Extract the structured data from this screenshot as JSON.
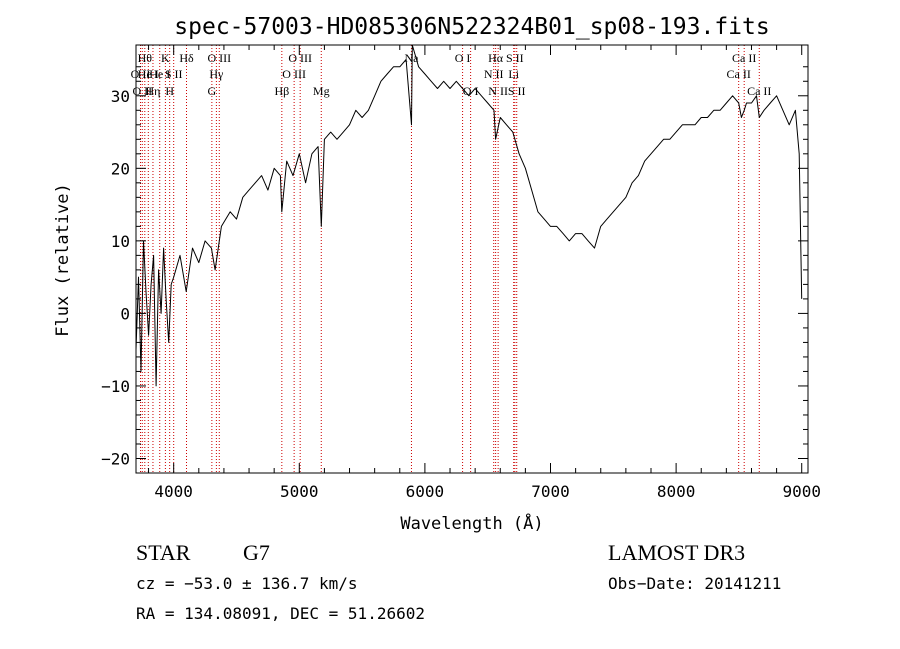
{
  "chart_data": {
    "type": "line",
    "title": "spec-57003-HD085306N522324B01_sp08-193.fits",
    "xlabel": "Wavelength (Å)",
    "ylabel": "Flux (relative)",
    "xlim": [
      3700,
      9050
    ],
    "ylim": [
      -22,
      37
    ],
    "xticks": [
      {
        "value": 4000,
        "label": "4000"
      },
      {
        "value": 5000,
        "label": "5000"
      },
      {
        "value": 6000,
        "label": "6000"
      },
      {
        "value": 7000,
        "label": "7000"
      },
      {
        "value": 8000,
        "label": "8000"
      },
      {
        "value": 9000,
        "label": "9000"
      }
    ],
    "yticks": [
      {
        "value": -20,
        "label": "−20"
      },
      {
        "value": -10,
        "label": "−10"
      },
      {
        "value": 0,
        "label": "0"
      },
      {
        "value": 10,
        "label": "10"
      },
      {
        "value": 20,
        "label": "20"
      },
      {
        "value": 30,
        "label": "30"
      }
    ],
    "series": [
      {
        "name": "flux",
        "x": [
          3700,
          3720,
          3740,
          3760,
          3780,
          3800,
          3820,
          3840,
          3860,
          3880,
          3900,
          3920,
          3940,
          3960,
          3980,
          4000,
          4050,
          4100,
          4150,
          4200,
          4250,
          4300,
          4330,
          4380,
          4450,
          4500,
          4550,
          4600,
          4650,
          4700,
          4750,
          4800,
          4850,
          4861,
          4900,
          4950,
          5000,
          5050,
          5100,
          5150,
          5175,
          5200,
          5250,
          5300,
          5350,
          5400,
          5450,
          5500,
          5550,
          5600,
          5650,
          5700,
          5750,
          5800,
          5850,
          5893,
          5900,
          5950,
          6000,
          6050,
          6100,
          6150,
          6200,
          6250,
          6300,
          6350,
          6400,
          6450,
          6500,
          6550,
          6563,
          6600,
          6650,
          6700,
          6750,
          6800,
          6850,
          6900,
          6950,
          7000,
          7050,
          7100,
          7150,
          7200,
          7250,
          7300,
          7350,
          7400,
          7450,
          7500,
          7550,
          7600,
          7650,
          7700,
          7750,
          7800,
          7850,
          7900,
          7950,
          8000,
          8050,
          8100,
          8150,
          8200,
          8250,
          8300,
          8350,
          8400,
          8450,
          8498,
          8520,
          8542,
          8560,
          8600,
          8640,
          8662,
          8700,
          8750,
          8800,
          8850,
          8900,
          8950,
          8980,
          9000
        ],
        "values": [
          -5,
          5,
          -8,
          10,
          3,
          -3,
          4,
          8,
          -10,
          6,
          0,
          9,
          2,
          -4,
          4,
          5,
          8,
          3,
          9,
          7,
          10,
          9,
          6,
          12,
          14,
          13,
          16,
          17,
          18,
          19,
          17,
          20,
          19,
          14,
          21,
          19,
          22,
          18,
          22,
          23,
          12,
          24,
          25,
          24,
          25,
          26,
          28,
          27,
          28,
          30,
          32,
          33,
          34,
          34,
          35,
          26,
          37,
          34,
          33,
          32,
          31,
          32,
          31,
          32,
          31,
          30,
          31,
          30,
          29,
          28,
          24,
          27,
          26,
          25,
          22,
          20,
          17,
          14,
          13,
          12,
          12,
          11,
          10,
          11,
          11,
          10,
          9,
          12,
          13,
          14,
          15,
          16,
          18,
          19,
          21,
          22,
          23,
          24,
          24,
          25,
          26,
          26,
          26,
          27,
          27,
          28,
          28,
          29,
          30,
          29,
          27,
          28,
          29,
          29,
          30,
          27,
          28,
          29,
          30,
          28,
          26,
          28,
          22,
          2
        ]
      }
    ],
    "lines": [
      {
        "x": 3736,
        "label": "O II",
        "row": 2
      },
      {
        "x": 3750,
        "label": "O II",
        "row": 3
      },
      {
        "x": 3770,
        "label": "Hθ",
        "row": 1
      },
      {
        "x": 3798,
        "label": "He I",
        "row": 2
      },
      {
        "x": 3835,
        "label": "Hη",
        "row": 3
      },
      {
        "x": 3889,
        "label": "He I",
        "row": 2
      },
      {
        "x": 3934,
        "label": "K",
        "row": 1
      },
      {
        "x": 3968,
        "label": "H",
        "row": 3
      },
      {
        "x": 4000,
        "label": "S II",
        "row": 2
      },
      {
        "x": 4102,
        "label": "Hδ",
        "row": 1
      },
      {
        "x": 4304,
        "label": "G",
        "row": 3
      },
      {
        "x": 4340,
        "label": "Hγ",
        "row": 2
      },
      {
        "x": 4363,
        "label": "O III",
        "row": 1
      },
      {
        "x": 4861,
        "label": "Hβ",
        "row": 3
      },
      {
        "x": 4959,
        "label": "O III",
        "row": 2
      },
      {
        "x": 5007,
        "label": "O III",
        "row": 1
      },
      {
        "x": 5175,
        "label": "Mg",
        "row": 3
      },
      {
        "x": 5893,
        "label": "Na",
        "row": 1
      },
      {
        "x": 6300,
        "label": "O I",
        "row": 1
      },
      {
        "x": 6364,
        "label": "O I",
        "row": 3
      },
      {
        "x": 6548,
        "label": "N II",
        "row": 2
      },
      {
        "x": 6563,
        "label": "Hα",
        "row": 1
      },
      {
        "x": 6583,
        "label": "N II",
        "row": 3
      },
      {
        "x": 6707,
        "label": "Li",
        "row": 2
      },
      {
        "x": 6716,
        "label": "S II",
        "row": 1
      },
      {
        "x": 6731,
        "label": "S II",
        "row": 3
      },
      {
        "x": 8498,
        "label": "Ca II",
        "row": 2
      },
      {
        "x": 8542,
        "label": "Ca II",
        "row": 1
      },
      {
        "x": 8662,
        "label": "Ca II",
        "row": 3
      }
    ]
  },
  "info": {
    "object_class": "STAR",
    "subclass": "G7",
    "survey": "LAMOST DR3",
    "cz": "cz = −53.0 ± 136.7 km/s",
    "obs_date": "Obs−Date: 20141211",
    "coords": "RA = 134.08091, DEC =  51.26602"
  },
  "colors": {
    "axis": "#000000",
    "spectrum": "#000000",
    "line_marker": "#cc0000",
    "background": "#ffffff"
  }
}
